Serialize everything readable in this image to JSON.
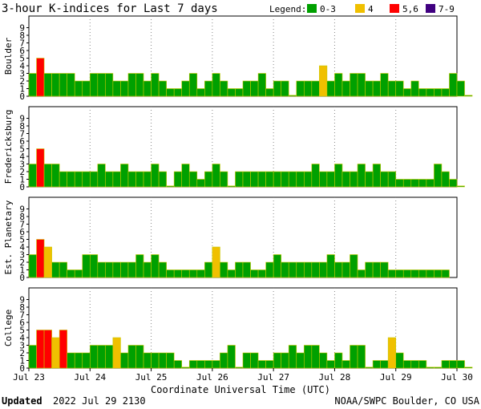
{
  "title": "3-hour K-indices for Last 7 days",
  "legend": {
    "label": "Legend:",
    "items": [
      {
        "text": "0-3",
        "color": "#00a000"
      },
      {
        "text": "4",
        "color": "#f0c000"
      },
      {
        "text": "5,6",
        "color": "#ff0000"
      },
      {
        "text": "7-9",
        "color": "#400080"
      }
    ]
  },
  "footer": {
    "updated_label": "Updated",
    "updated_value": "2022 Jul 29 2130",
    "source": "NOAA/SWPC Boulder, CO USA"
  },
  "chart_data": {
    "type": "bar",
    "xlabel": "Coordinate Universal Time (UTC)",
    "x_ticks": [
      "Jul 23",
      "Jul 24",
      "Jul 25",
      "Jul 26",
      "Jul 27",
      "Jul 28",
      "Jul 29",
      "Jul 30"
    ],
    "y_ticks": [
      0,
      1,
      2,
      3,
      4,
      5,
      6,
      7,
      8,
      9
    ],
    "ylim": [
      0,
      9
    ],
    "grid": true,
    "color_bins": {
      "0-3": "#00a000",
      "4": "#f0c000",
      "5-6": "#ff0000",
      "7-9": "#400080"
    },
    "series": [
      {
        "name": "Boulder",
        "values": [
          3,
          5,
          3,
          3,
          3,
          3,
          2,
          2,
          3,
          3,
          3,
          2,
          2,
          3,
          3,
          2,
          3,
          2,
          1,
          1,
          2,
          3,
          1,
          2,
          3,
          2,
          1,
          1,
          2,
          2,
          3,
          1,
          2,
          2,
          0,
          2,
          2,
          2,
          4,
          2,
          3,
          2,
          3,
          3,
          2,
          2,
          3,
          2,
          2,
          1,
          2,
          1,
          1,
          1,
          1,
          3,
          2,
          0
        ]
      },
      {
        "name": "Fredericksburg",
        "values": [
          3,
          5,
          3,
          3,
          2,
          2,
          2,
          2,
          2,
          3,
          2,
          2,
          3,
          2,
          2,
          2,
          3,
          2,
          0,
          2,
          3,
          2,
          1,
          2,
          3,
          2,
          0,
          2,
          2,
          2,
          2,
          2,
          2,
          2,
          2,
          2,
          2,
          3,
          2,
          2,
          3,
          2,
          2,
          3,
          2,
          3,
          2,
          2,
          1,
          1,
          1,
          1,
          1,
          3,
          2,
          1,
          0
        ]
      },
      {
        "name": "Est. Planetary",
        "values": [
          3,
          5,
          4,
          2,
          2,
          1,
          1,
          3,
          3,
          2,
          2,
          2,
          2,
          2,
          3,
          2,
          3,
          2,
          1,
          1,
          1,
          1,
          1,
          2,
          4,
          2,
          1,
          2,
          2,
          1,
          1,
          2,
          3,
          2,
          2,
          2,
          2,
          2,
          2,
          3,
          2,
          2,
          3,
          1,
          2,
          2,
          2,
          1,
          1,
          1,
          1,
          1,
          1,
          1,
          1
        ]
      },
      {
        "name": "College",
        "values": [
          3,
          5,
          5,
          4,
          5,
          2,
          2,
          2,
          3,
          3,
          3,
          4,
          2,
          3,
          3,
          2,
          2,
          2,
          2,
          1,
          0,
          1,
          1,
          1,
          1,
          2,
          3,
          0,
          2,
          2,
          1,
          1,
          2,
          2,
          3,
          2,
          3,
          3,
          2,
          1,
          2,
          1,
          3,
          3,
          0,
          1,
          1,
          4,
          2,
          1,
          1,
          1,
          0,
          0,
          1,
          1,
          1,
          0
        ]
      }
    ]
  }
}
